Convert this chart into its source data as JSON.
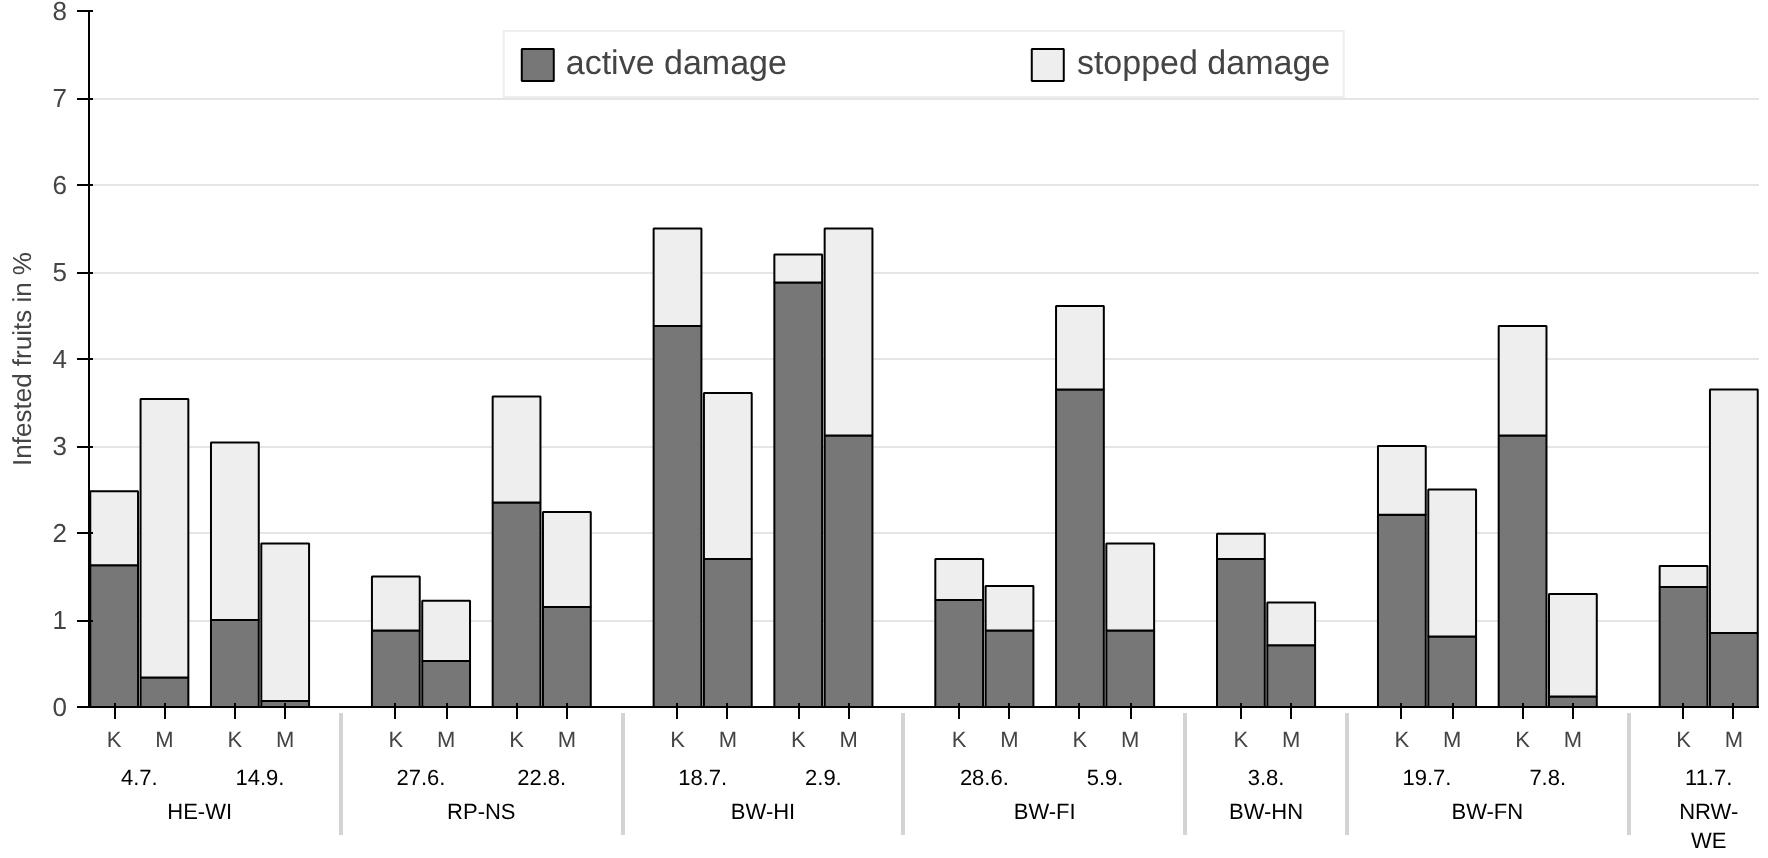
{
  "chart_data": {
    "type": "bar",
    "stacked": true,
    "ylabel": "Infested fruits in %",
    "categories": [
      [
        "HE-WI",
        "4.7.",
        "K"
      ],
      [
        null,
        null,
        "M"
      ],
      [
        null,
        "14.9.",
        "K"
      ],
      [
        null,
        null,
        "M"
      ],
      [
        "RP-NS",
        "27.6.",
        "K"
      ],
      [
        null,
        null,
        "M"
      ],
      [
        null,
        "22.8.",
        "K"
      ],
      [
        null,
        null,
        "M"
      ],
      [
        "BW-HI",
        "18.7.",
        "K"
      ],
      [
        null,
        null,
        "M"
      ],
      [
        null,
        "2.9.",
        "K"
      ],
      [
        null,
        null,
        "M"
      ],
      [
        "BW-FI",
        "28.6.",
        "K"
      ],
      [
        null,
        null,
        "M"
      ],
      [
        null,
        "5.9.",
        "K"
      ],
      [
        null,
        null,
        "M"
      ],
      [
        "BW-HN",
        "3.8.",
        "K"
      ],
      [
        null,
        null,
        "M"
      ],
      [
        "BW-FN",
        "19.7.",
        "K"
      ],
      [
        null,
        null,
        "M"
      ],
      [
        null,
        "7.8.",
        "K"
      ],
      [
        null,
        null,
        "M"
      ],
      [
        "NRW-\nWE",
        "11.7.",
        "K"
      ],
      [
        null,
        null,
        "M"
      ]
    ],
    "series": [
      {
        "name": "active damage",
        "color": "#777777",
        "values": [
          1.63,
          0.34,
          1.0,
          0.07,
          0.88,
          0.53,
          2.35,
          1.15,
          4.38,
          1.7,
          4.88,
          3.12,
          1.23,
          0.88,
          3.65,
          0.88,
          1.7,
          0.71,
          2.21,
          0.81,
          3.12,
          0.12,
          1.38,
          0.85
        ]
      },
      {
        "name": "stopped damage",
        "color": "#eeeeee",
        "values": [
          0.85,
          3.2,
          2.04,
          1.81,
          0.62,
          0.69,
          1.22,
          1.09,
          1.12,
          1.91,
          0.32,
          2.38,
          0.47,
          0.51,
          0.96,
          1.0,
          0.29,
          0.49,
          0.79,
          1.69,
          1.26,
          1.18,
          0.24,
          2.8
        ]
      }
    ],
    "ylim": [
      0,
      8
    ],
    "yticks": [
      0,
      1,
      2,
      3,
      4,
      5,
      6,
      7,
      8
    ],
    "grid": "y",
    "legend": "top"
  }
}
